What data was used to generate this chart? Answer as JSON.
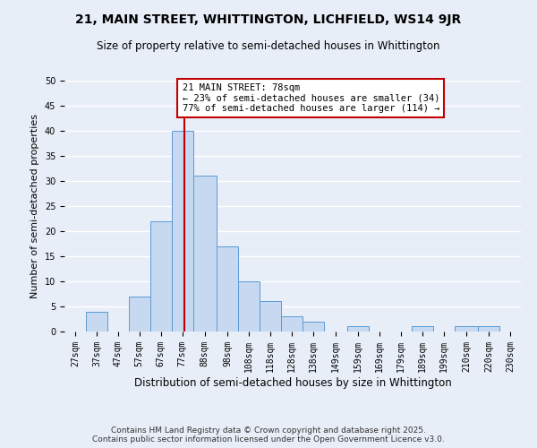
{
  "title": "21, MAIN STREET, WHITTINGTON, LICHFIELD, WS14 9JR",
  "subtitle": "Size of property relative to semi-detached houses in Whittington",
  "xlabel": "Distribution of semi-detached houses by size in Whittington",
  "ylabel": "Number of semi-detached properties",
  "bin_labels": [
    "27sqm",
    "37sqm",
    "47sqm",
    "57sqm",
    "67sqm",
    "77sqm",
    "88sqm",
    "98sqm",
    "108sqm",
    "118sqm",
    "128sqm",
    "138sqm",
    "149sqm",
    "159sqm",
    "169sqm",
    "179sqm",
    "189sqm",
    "199sqm",
    "210sqm",
    "220sqm",
    "230sqm"
  ],
  "bin_edges": [
    22,
    32,
    42,
    52,
    62,
    72,
    82,
    93,
    103,
    113,
    123,
    133,
    143,
    154,
    164,
    174,
    184,
    194,
    204,
    215,
    225,
    235
  ],
  "counts": [
    0,
    4,
    0,
    7,
    22,
    40,
    31,
    17,
    10,
    6,
    3,
    2,
    0,
    1,
    0,
    0,
    1,
    0,
    1,
    1,
    0
  ],
  "bar_color": "#c6d9f0",
  "bar_edge_color": "#5b9bd5",
  "property_size": 78,
  "vline_color": "#c00000",
  "annotation_text": "21 MAIN STREET: 78sqm\n← 23% of semi-detached houses are smaller (34)\n77% of semi-detached houses are larger (114) →",
  "annotation_box_color": "#ffffff",
  "annotation_box_edge": "#c00000",
  "ylim": [
    0,
    50
  ],
  "yticks": [
    0,
    5,
    10,
    15,
    20,
    25,
    30,
    35,
    40,
    45,
    50
  ],
  "background_color": "#e8eef8",
  "grid_color": "#ffffff",
  "footer_text": "Contains HM Land Registry data © Crown copyright and database right 2025.\nContains public sector information licensed under the Open Government Licence v3.0.",
  "title_fontsize": 10,
  "subtitle_fontsize": 8.5,
  "xlabel_fontsize": 8.5,
  "ylabel_fontsize": 8,
  "tick_fontsize": 7,
  "annotation_fontsize": 7.5,
  "footer_fontsize": 6.5
}
